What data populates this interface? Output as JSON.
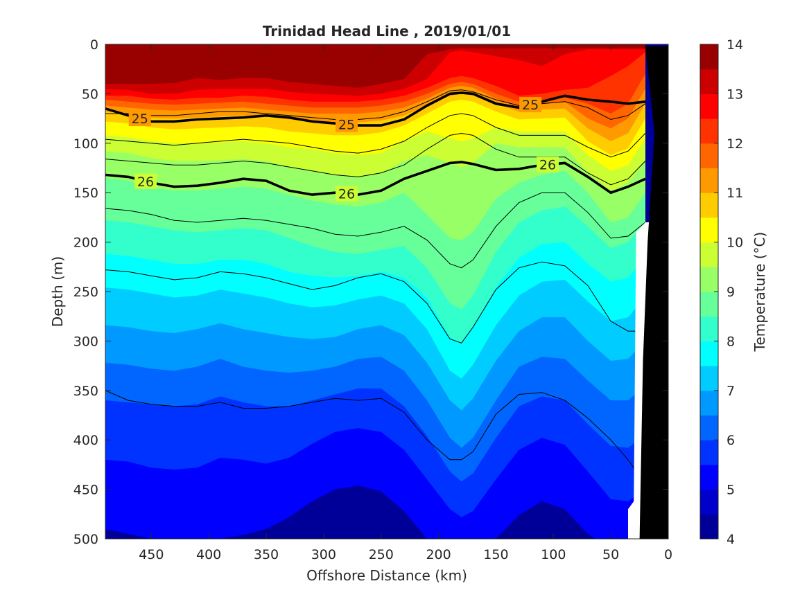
{
  "chart_data": {
    "type": "heatmap",
    "title": "Trinidad Head Line , 2019/01/01",
    "xlabel": "Offshore Distance (km)",
    "ylabel": "Depth (m)",
    "colorbar_label": "Temperature (°C)",
    "xlim": [
      490,
      0
    ],
    "ylim": [
      0,
      500
    ],
    "x_reversed": true,
    "y_reversed": true,
    "x_ticks": [
      450,
      400,
      350,
      300,
      250,
      200,
      150,
      100,
      50,
      0
    ],
    "y_ticks": [
      0,
      50,
      100,
      150,
      200,
      250,
      300,
      350,
      400,
      450,
      500
    ],
    "colorbar_ticks": [
      4,
      5,
      6,
      7,
      8,
      9,
      10,
      11,
      12,
      13,
      14
    ],
    "colorbar_range": [
      4,
      14
    ],
    "colormap": "jet",
    "contour_levels_temperature": [
      4,
      4.5,
      5,
      5.5,
      6,
      6.5,
      7,
      7.5,
      8,
      8.5,
      9,
      9.5,
      10,
      10.5,
      11,
      11.5,
      12,
      12.5,
      13,
      13.5,
      14
    ],
    "x_data_km": [
      490,
      470,
      450,
      430,
      410,
      390,
      370,
      350,
      330,
      310,
      290,
      270,
      250,
      230,
      210,
      190,
      180,
      170,
      150,
      130,
      110,
      90,
      70,
      50,
      35,
      20
    ],
    "isotherm_depths": [
      {
        "t": 13.5,
        "d": [
          40,
          40,
          40,
          39,
          34,
          36,
          34,
          34,
          38,
          40,
          42,
          44,
          40,
          35,
          10,
          5,
          4,
          4,
          4,
          4,
          4,
          4,
          4,
          4,
          4,
          4
        ]
      },
      {
        "t": 13.0,
        "d": [
          45,
          46,
          50,
          50,
          46,
          45,
          45,
          45,
          48,
          50,
          51,
          52,
          50,
          45,
          35,
          8,
          6,
          8,
          12,
          16,
          22,
          10,
          5,
          5,
          5,
          5
        ]
      },
      {
        "t": 12.5,
        "d": [
          52,
          52,
          55,
          56,
          54,
          54,
          52,
          53,
          56,
          58,
          58,
          58,
          56,
          52,
          44,
          34,
          32,
          34,
          42,
          52,
          50,
          46,
          44,
          32,
          22,
          8
        ]
      },
      {
        "t": 12.0,
        "d": [
          56,
          58,
          60,
          61,
          60,
          59,
          58,
          60,
          62,
          64,
          64,
          64,
          62,
          58,
          50,
          40,
          38,
          40,
          50,
          58,
          56,
          54,
          60,
          70,
          60,
          30
        ]
      },
      {
        "t": 11.5,
        "d": [
          62,
          64,
          66,
          67,
          66,
          65,
          64,
          66,
          68,
          70,
          70,
          70,
          68,
          64,
          55,
          44,
          42,
          44,
          55,
          63,
          60,
          58,
          75,
          85,
          75,
          45
        ]
      },
      {
        "t": 11.0,
        "d": [
          68,
          70,
          74,
          75,
          74,
          73,
          72,
          73,
          76,
          78,
          79,
          79,
          77,
          72,
          62,
          52,
          50,
          52,
          60,
          68,
          66,
          65,
          85,
          98,
          90,
          60
        ]
      },
      {
        "t": 10.5,
        "d": [
          78,
          80,
          84,
          86,
          85,
          84,
          83,
          84,
          88,
          90,
          92,
          92,
          89,
          82,
          70,
          58,
          56,
          58,
          68,
          76,
          75,
          74,
          98,
          112,
          105,
          75
        ]
      },
      {
        "t": 10.0,
        "d": [
          92,
          94,
          98,
          100,
          100,
          99,
          98,
          100,
          104,
          106,
          110,
          112,
          110,
          98,
          88,
          95,
          98,
          95,
          84,
          88,
          88,
          88,
          112,
          128,
          122,
          95
        ]
      },
      {
        "t": 9.5,
        "d": [
          108,
          110,
          115,
          118,
          118,
          117,
          116,
          118,
          124,
          128,
          132,
          134,
          130,
          118,
          112,
          120,
          124,
          120,
          100,
          104,
          104,
          104,
          130,
          148,
          140,
          118
        ]
      },
      {
        "t": 9.0,
        "d": [
          135,
          138,
          145,
          148,
          148,
          146,
          144,
          146,
          152,
          158,
          162,
          164,
          160,
          150,
          172,
          196,
          198,
          190,
          156,
          140,
          132,
          128,
          150,
          180,
          175,
          150
        ]
      },
      {
        "t": 8.5,
        "d": [
          178,
          180,
          184,
          188,
          190,
          188,
          186,
          188,
          196,
          204,
          210,
          212,
          208,
          204,
          226,
          262,
          268,
          254,
          210,
          180,
          168,
          164,
          184,
          206,
          200,
          180
        ]
      },
      {
        "t": 8.0,
        "d": [
          212,
          214,
          218,
          222,
          222,
          218,
          218,
          222,
          230,
          234,
          236,
          234,
          230,
          236,
          256,
          296,
          302,
          286,
          246,
          216,
          202,
          200,
          222,
          240,
          236,
          215
        ]
      },
      {
        "t": 7.5,
        "d": [
          246,
          248,
          252,
          256,
          254,
          248,
          252,
          256,
          262,
          266,
          264,
          258,
          254,
          262,
          288,
          330,
          338,
          324,
          284,
          254,
          240,
          238,
          260,
          280,
          276,
          255
        ]
      },
      {
        "t": 7.0,
        "d": [
          284,
          286,
          290,
          292,
          288,
          282,
          288,
          292,
          296,
          298,
          296,
          288,
          284,
          294,
          322,
          360,
          370,
          358,
          320,
          290,
          276,
          276,
          300,
          320,
          318,
          300
        ]
      },
      {
        "t": 6.5,
        "d": [
          322,
          324,
          328,
          330,
          326,
          318,
          326,
          330,
          332,
          330,
          326,
          318,
          316,
          330,
          360,
          398,
          408,
          398,
          360,
          326,
          316,
          318,
          340,
          360,
          360,
          345
        ]
      },
      {
        "t": 6.0,
        "d": [
          360,
          362,
          364,
          366,
          364,
          356,
          362,
          366,
          366,
          360,
          354,
          348,
          348,
          366,
          396,
          432,
          442,
          434,
          398,
          366,
          356,
          360,
          384,
          406,
          408,
          395
        ]
      },
      {
        "t": 5.5,
        "d": [
          420,
          422,
          428,
          430,
          428,
          418,
          420,
          424,
          418,
          404,
          392,
          388,
          392,
          410,
          440,
          470,
          478,
          472,
          440,
          410,
          398,
          405,
          432,
          460,
          462,
          450
        ]
      },
      {
        "t": 5.0,
        "d": [
          490,
          495,
          500,
          505,
          505,
          500,
          496,
          490,
          478,
          462,
          450,
          446,
          452,
          472,
          500,
          520,
          525,
          522,
          500,
          476,
          462,
          470,
          495,
          510,
          512,
          510
        ]
      }
    ],
    "thin_contours": [
      {
        "d": [
          70,
          70,
          72,
          72,
          70,
          68,
          68,
          70,
          72,
          74,
          76,
          76,
          74,
          68,
          58,
          47,
          46,
          48,
          56,
          62,
          60,
          58,
          64,
          76,
          72,
          60
        ]
      },
      {
        "d": [
          96,
          98,
          100,
          102,
          100,
          98,
          96,
          98,
          100,
          104,
          108,
          110,
          106,
          98,
          84,
          72,
          70,
          72,
          84,
          92,
          92,
          92,
          104,
          114,
          108,
          90
        ]
      },
      {
        "d": [
          116,
          118,
          120,
          122,
          122,
          120,
          118,
          120,
          124,
          128,
          132,
          134,
          130,
          122,
          106,
          92,
          90,
          92,
          106,
          114,
          114,
          114,
          130,
          142,
          136,
          118
        ]
      },
      {
        "d": [
          166,
          168,
          172,
          178,
          180,
          178,
          176,
          178,
          182,
          186,
          192,
          194,
          190,
          184,
          198,
          222,
          226,
          218,
          184,
          160,
          150,
          150,
          170,
          196,
          194,
          180
        ]
      },
      {
        "d": [
          228,
          230,
          234,
          238,
          236,
          230,
          232,
          236,
          242,
          248,
          244,
          236,
          232,
          240,
          262,
          298,
          302,
          286,
          248,
          226,
          220,
          224,
          244,
          280,
          290,
          290
        ]
      },
      {
        "d": [
          350,
          360,
          364,
          366,
          366,
          362,
          368,
          368,
          366,
          362,
          358,
          360,
          358,
          372,
          400,
          420,
          420,
          412,
          374,
          354,
          352,
          360,
          378,
          400,
          420,
          445
        ]
      }
    ],
    "labeled_contours": [
      {
        "label": "25",
        "d": [
          65,
          72,
          78,
          78,
          76,
          75,
          74,
          72,
          74,
          78,
          80,
          82,
          82,
          76,
          62,
          50,
          49,
          50,
          60,
          64,
          58,
          52,
          56,
          58,
          60,
          58
        ],
        "label_x": [
          460,
          280,
          120
        ]
      },
      {
        "label": "26",
        "d": [
          132,
          134,
          140,
          144,
          143,
          140,
          136,
          138,
          148,
          152,
          150,
          152,
          148,
          136,
          128,
          120,
          119,
          121,
          127,
          126,
          122,
          120,
          134,
          150,
          144,
          136
        ],
        "label_x": [
          455,
          280,
          105
        ]
      }
    ],
    "coast_boundary": [
      [
        35,
        500
      ],
      [
        35,
        470
      ],
      [
        30,
        462
      ],
      [
        28,
        190
      ],
      [
        20,
        180
      ],
      [
        0,
        180
      ]
    ],
    "land_polygon": [
      [
        25,
        500
      ],
      [
        8,
        500
      ],
      [
        0,
        500
      ],
      [
        0,
        2
      ],
      [
        20,
        2
      ],
      [
        12,
        90
      ],
      [
        18,
        200
      ],
      [
        22,
        320
      ],
      [
        25,
        500
      ]
    ]
  }
}
